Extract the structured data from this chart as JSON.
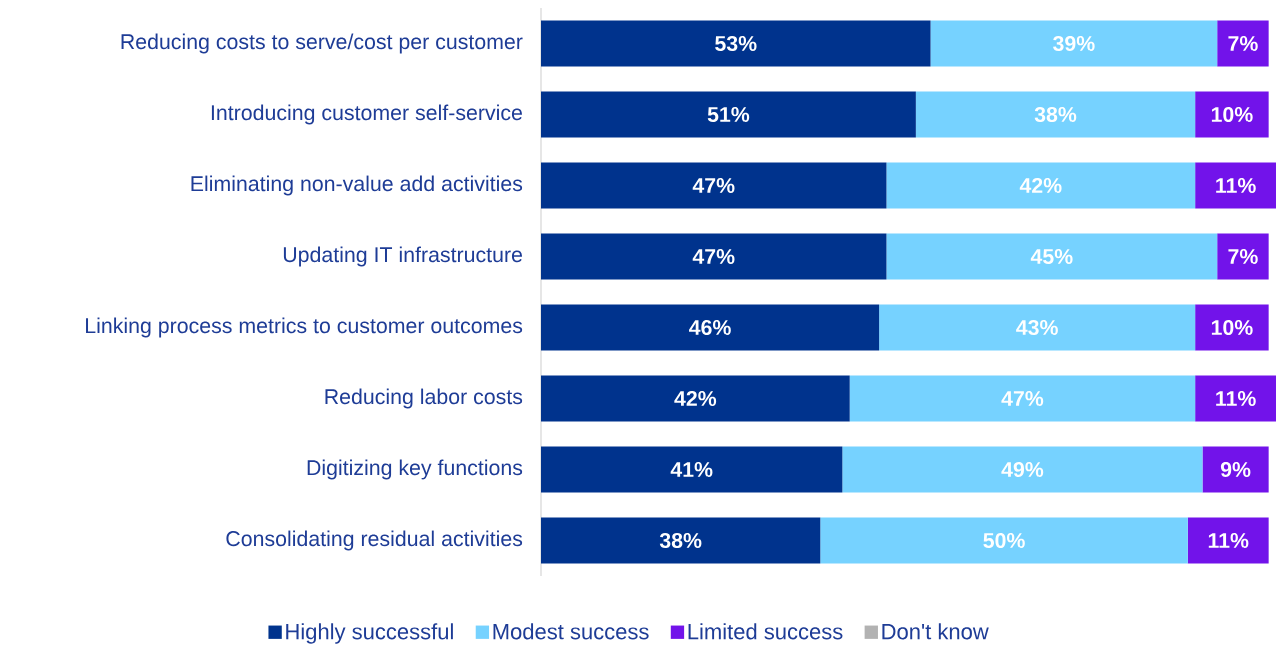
{
  "chart_data": {
    "type": "bar",
    "orientation": "horizontal",
    "stacked": true,
    "tick_labels": "y",
    "legend": "bottom",
    "categories": [
      "Reducing costs to serve/cost per customer",
      "Introducing customer self-service",
      "Eliminating non-value add activities",
      "Updating IT infrastructure",
      "Linking process metrics to customer outcomes",
      "Reducing labor costs",
      "Digitizing key functions",
      "Consolidating residual activities"
    ],
    "series": [
      {
        "name": "Highly successful",
        "color": "#00338d",
        "values": [
          53,
          51,
          47,
          47,
          46,
          42,
          41,
          38
        ],
        "value_labels": [
          "53%",
          "51%",
          "47%",
          "47%",
          "46%",
          "42%",
          "41%",
          "38%"
        ]
      },
      {
        "name": "Modest success",
        "color": "#76d2ff",
        "values": [
          39,
          38,
          42,
          45,
          43,
          47,
          49,
          50
        ],
        "value_labels": [
          "39%",
          "38%",
          "42%",
          "45%",
          "43%",
          "47%",
          "49%",
          "50%"
        ]
      },
      {
        "name": "Limited success",
        "color": "#7213ea",
        "values": [
          7,
          10,
          11,
          7,
          10,
          11,
          9,
          11
        ],
        "value_labels": [
          "7%",
          "10%",
          "11%",
          "7%",
          "10%",
          "11%",
          "9%",
          "11%"
        ]
      },
      {
        "name": "Don't know",
        "color": "#b2b2b2",
        "values": [
          null,
          null,
          null,
          null,
          null,
          null,
          null,
          null
        ]
      }
    ]
  }
}
